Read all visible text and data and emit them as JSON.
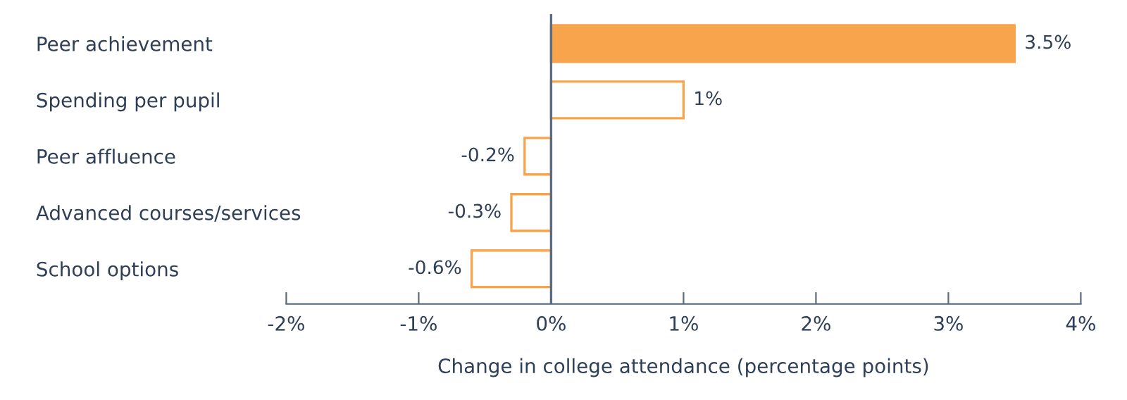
{
  "chart_data": {
    "type": "bar",
    "orientation": "horizontal",
    "xlabel": "Change in college attendance (percentage points)",
    "categories": [
      "Peer achievement",
      "Spending per pupil",
      "Peer affluence",
      "Advanced courses/services",
      "School options"
    ],
    "series": [
      {
        "color": "#f7a44c",
        "colors": [
          "#f7a44c",
          "#ffffff",
          "#ffffff",
          "#ffffff",
          "#ffffff"
        ],
        "values": [
          3.5,
          1,
          -0.2,
          -0.3,
          -0.6
        ],
        "value_labels": [
          "3.5%",
          "1%",
          "-0.2%",
          "-0.3%",
          "-0.6%"
        ]
      }
    ],
    "xlim": [
      -2,
      4
    ],
    "xticks": [
      {
        "value": -2,
        "label": "-2%"
      },
      {
        "value": -1,
        "label": "-1%"
      },
      {
        "value": 0,
        "label": "0%"
      },
      {
        "value": 1,
        "label": "1%"
      },
      {
        "value": 2,
        "label": "2%"
      },
      {
        "value": 3,
        "label": "3%"
      },
      {
        "value": 4,
        "label": "4%"
      }
    ],
    "ref_lines": [
      {
        "axis": "x",
        "value": 0,
        "color": "#5b6b80"
      }
    ],
    "grid": false,
    "legend": false
  }
}
